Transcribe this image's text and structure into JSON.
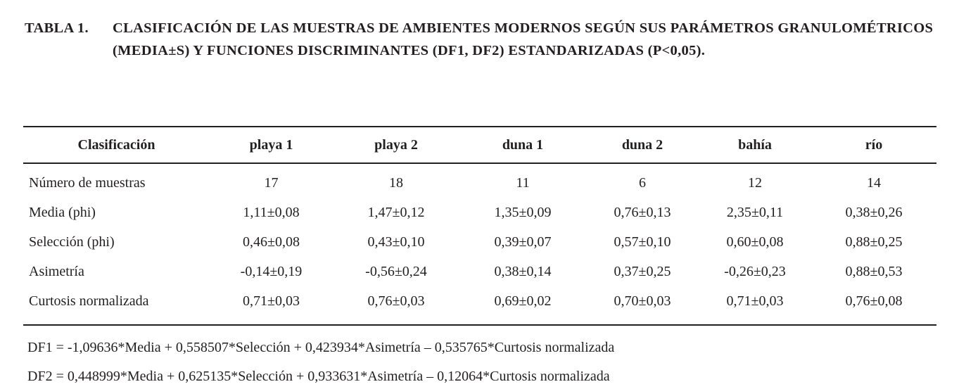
{
  "caption": {
    "label": "TABLA 1.",
    "text": "CLASIFICACIÓN DE LAS MUESTRAS DE AMBIENTES MODERNOS SEGÚN SUS PARÁMETROS GRANULOMÉTRICOS (MEDIA±S) Y FUNCIONES DISCRIMINANTES (DF1, DF2) ESTANDARIZADAS (P<0,05)."
  },
  "table": {
    "headers": [
      "Clasificación",
      "playa 1",
      "playa 2",
      "duna 1",
      "duna 2",
      "bahía",
      "río"
    ],
    "rows": [
      {
        "label": "Número de muestras",
        "values": [
          "17",
          "18",
          "11",
          "6",
          "12",
          "14"
        ]
      },
      {
        "label": "Media (phi)",
        "values": [
          "1,11±0,08",
          "1,47±0,12",
          "1,35±0,09",
          "0,76±0,13",
          "2,35±0,11",
          "0,38±0,26"
        ]
      },
      {
        "label": "Selección (phi)",
        "values": [
          "0,46±0,08",
          "0,43±0,10",
          "0,39±0,07",
          "0,57±0,10",
          "0,60±0,08",
          "0,88±0,25"
        ]
      },
      {
        "label": "Asimetría",
        "values": [
          "-0,14±0,19",
          "-0,56±0,24",
          "0,38±0,14",
          "0,37±0,25",
          "-0,26±0,23",
          "0,88±0,53"
        ]
      },
      {
        "label": "Curtosis normalizada",
        "values": [
          "0,71±0,03",
          "0,76±0,03",
          "0,69±0,02",
          "0,70±0,03",
          "0,71±0,03",
          "0,76±0,08"
        ]
      }
    ],
    "footnotes": [
      "DF1 = -1,09636*Media + 0,558507*Selección + 0,423934*Asimetría – 0,535765*Curtosis normalizada",
      "DF2 = 0,448999*Media + 0,625135*Selección + 0,933631*Asimetría – 0,12064*Curtosis normalizada"
    ]
  },
  "colors": {
    "text": "#231f20",
    "rule": "#231f20",
    "background": "#ffffff"
  }
}
